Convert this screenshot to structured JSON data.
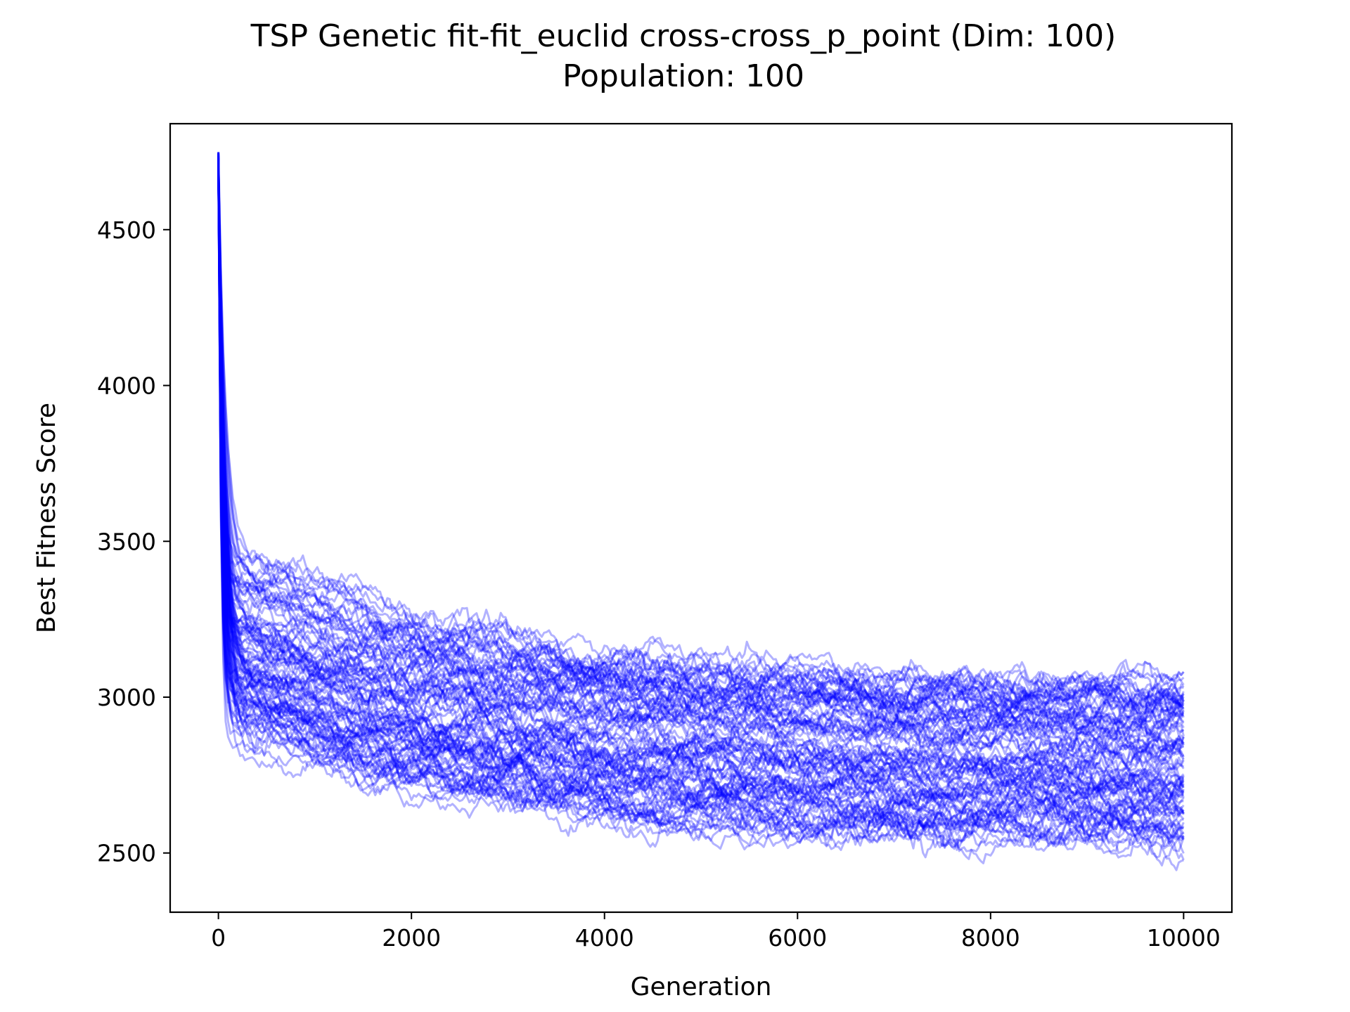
{
  "chart_data": {
    "type": "line",
    "title": "TSP Genetic fit-fit_euclid cross-cross_p_point (Dim: 100)",
    "subtitle": "Population: 100",
    "xlabel": "Generation",
    "ylabel": "Best Fitness Score",
    "xlim": [
      -500,
      10500
    ],
    "ylim": [
      2310,
      4840
    ],
    "xticks": [
      0,
      2000,
      4000,
      6000,
      8000,
      10000
    ],
    "xtick_labels": [
      "0",
      "2000",
      "4000",
      "6000",
      "8000",
      "10000"
    ],
    "yticks": [
      2500,
      3000,
      3500,
      4000,
      4500
    ],
    "ytick_labels": [
      "2500",
      "3000",
      "3500",
      "4000",
      "4500"
    ],
    "grid": false,
    "line_color": "#0000ff",
    "line_alpha": 0.3,
    "series_count": 100,
    "generations": 10000,
    "x": [
      0,
      10,
      25,
      50,
      100,
      200,
      400,
      700,
      1000,
      1500,
      2000,
      3000,
      4000,
      5000,
      6000,
      7000,
      8000,
      9000,
      10000
    ],
    "series_summary": [
      {
        "name": "",
        "values": [
          4740,
          4300,
          3950,
          3700,
          3450,
          3300,
          3220,
          3190,
          3150,
          3110,
          3080,
          3030,
          2990,
          2960,
          2935,
          2910,
          2890,
          2875,
          2860
        ]
      },
      {
        "name": "",
        "values": [
          4700,
          4200,
          3850,
          3560,
          3300,
          3150,
          3060,
          3010,
          2970,
          2930,
          2900,
          2850,
          2810,
          2780,
          2760,
          2740,
          2720,
          2705,
          2690
        ]
      },
      {
        "name": "",
        "values": [
          4750,
          4400,
          4050,
          3850,
          3620,
          3500,
          3420,
          3380,
          3350,
          3300,
          3250,
          3180,
          3130,
          3100,
          3080,
          3060,
          3040,
          3030,
          3010
        ]
      },
      {
        "name": "",
        "values": [
          4720,
          4150,
          3700,
          3350,
          3050,
          2850,
          2740,
          2700,
          2670,
          2640,
          2620,
          2590,
          2560,
          2545,
          2535,
          2525,
          2515,
          2510,
          2500
        ]
      }
    ]
  }
}
